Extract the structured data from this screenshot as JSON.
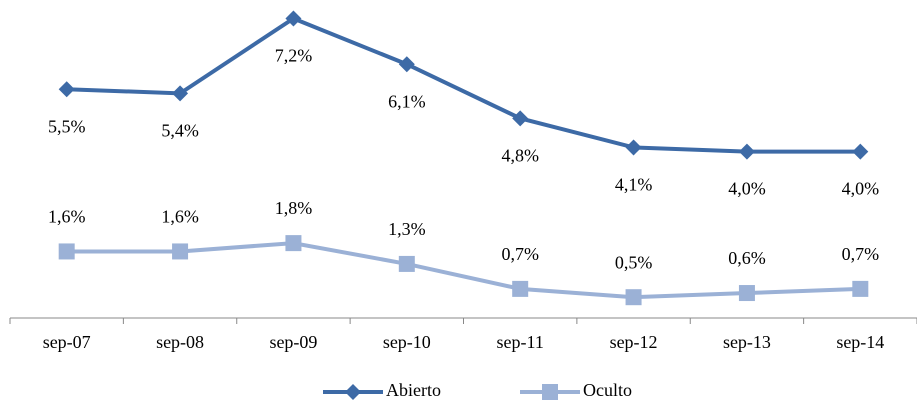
{
  "chart_data": {
    "type": "line",
    "categories": [
      "sep-07",
      "sep-08",
      "sep-09",
      "sep-10",
      "sep-11",
      "sep-12",
      "sep-13",
      "sep-14"
    ],
    "series": [
      {
        "name": "Abierto",
        "color": "#3d6aa6",
        "marker": "diamond",
        "values": [
          5.5,
          5.4,
          7.2,
          6.1,
          4.8,
          4.1,
          4.0,
          4.0
        ],
        "value_labels": [
          "5,5%",
          "5,4%",
          "7,2%",
          "6,1%",
          "4,8%",
          "4,1%",
          "4,0%",
          "4,0%"
        ]
      },
      {
        "name": "Oculto",
        "color": "#9bb1d6",
        "marker": "square",
        "values": [
          1.6,
          1.6,
          1.8,
          1.3,
          0.7,
          0.5,
          0.6,
          0.7
        ],
        "value_labels": [
          "1,6%",
          "1,6%",
          "1,8%",
          "1,3%",
          "0,7%",
          "0,5%",
          "0,6%",
          "0,7%"
        ]
      }
    ],
    "ylim": [
      0,
      7.5
    ],
    "legend": "bottom"
  }
}
